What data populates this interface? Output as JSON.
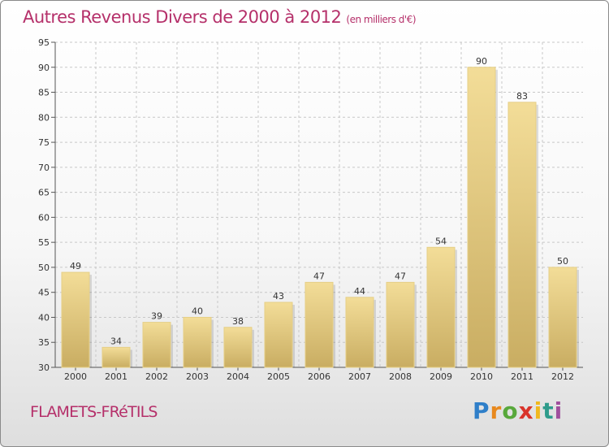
{
  "header": {
    "title": "Autres Revenus Divers de 2000 à 2012",
    "subtitle": "(en milliers d'€)"
  },
  "footer": {
    "commune": "FLAMETS-FRéTILS",
    "logo": {
      "p": "P",
      "r": "r",
      "o": "o",
      "x": "x",
      "i1": "i",
      "t": "t",
      "i2": "i"
    }
  },
  "colors": {
    "title": "#b5306a",
    "bar_light": "#f3dd98",
    "bar_dark": "#c9ad62",
    "grid": "#c8c8c8"
  },
  "chart_data": {
    "type": "bar",
    "categories": [
      "2000",
      "2001",
      "2002",
      "2003",
      "2004",
      "2005",
      "2006",
      "2007",
      "2008",
      "2009",
      "2010",
      "2011",
      "2012"
    ],
    "values": [
      49,
      34,
      39,
      40,
      38,
      43,
      47,
      44,
      47,
      54,
      90,
      83,
      50
    ],
    "data_labels": [
      "49",
      "34",
      "39",
      "40",
      "38",
      "43",
      "47",
      "44",
      "47",
      "54",
      "90",
      "83",
      "50"
    ],
    "ylim": [
      30,
      95
    ],
    "yticks": [
      "30",
      "35",
      "40",
      "45",
      "50",
      "55",
      "60",
      "65",
      "70",
      "75",
      "80",
      "85",
      "90",
      "95"
    ],
    "grid": true,
    "title": "Autres Revenus Divers de 2000 à 2012",
    "xlabel": "",
    "ylabel": ""
  }
}
